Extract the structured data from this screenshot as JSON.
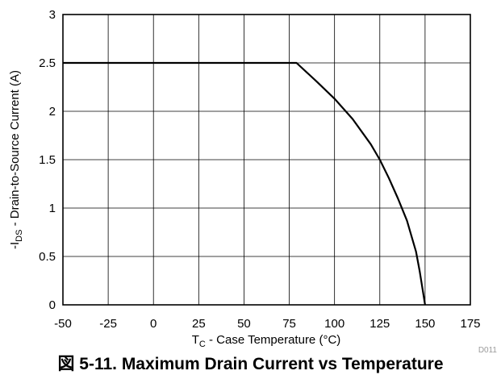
{
  "chart_data": {
    "type": "line",
    "x": [
      -50,
      79,
      90,
      100,
      110,
      120,
      125,
      130,
      135,
      140,
      145,
      147,
      150
    ],
    "y": [
      2.5,
      2.5,
      2.31,
      2.13,
      1.92,
      1.66,
      1.5,
      1.31,
      1.1,
      0.87,
      0.55,
      0.35,
      0
    ],
    "xticks": [
      "-50",
      "-25",
      "0",
      "25",
      "50",
      "75",
      "100",
      "125",
      "150",
      "175"
    ],
    "yticks": [
      "0",
      "0.5",
      "1",
      "1.5",
      "2",
      "2.5",
      "3"
    ],
    "xlim": [
      -50,
      175
    ],
    "ylim": [
      0,
      3
    ],
    "xlabel": {
      "prefix": "T",
      "subscript": "C",
      "suffix": " - Case Temperature (°C)"
    },
    "ylabel": {
      "prefix": "-I",
      "subscript": "DS",
      "suffix": " - Drain-to-Source Current (A)"
    },
    "grid": true,
    "code": "D011",
    "line_color": "#000000"
  },
  "caption": "図 5-11. Maximum Drain Current vs Temperature"
}
